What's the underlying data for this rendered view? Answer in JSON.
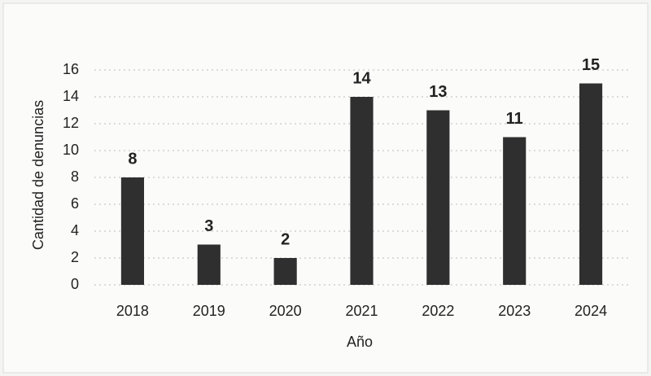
{
  "chart_data": {
    "type": "bar",
    "x_label": "Año",
    "y_label": "Cantidad de denuncias",
    "categories": [
      "2018",
      "2019",
      "2020",
      "2021",
      "2022",
      "2023",
      "2024"
    ],
    "values": [
      8,
      3,
      2,
      14,
      13,
      11,
      15
    ],
    "color": "#2f2f2f",
    "ylim": [
      0,
      16
    ],
    "yticks": [
      0,
      2,
      4,
      6,
      8,
      10,
      12,
      14,
      16
    ],
    "grid": true
  }
}
